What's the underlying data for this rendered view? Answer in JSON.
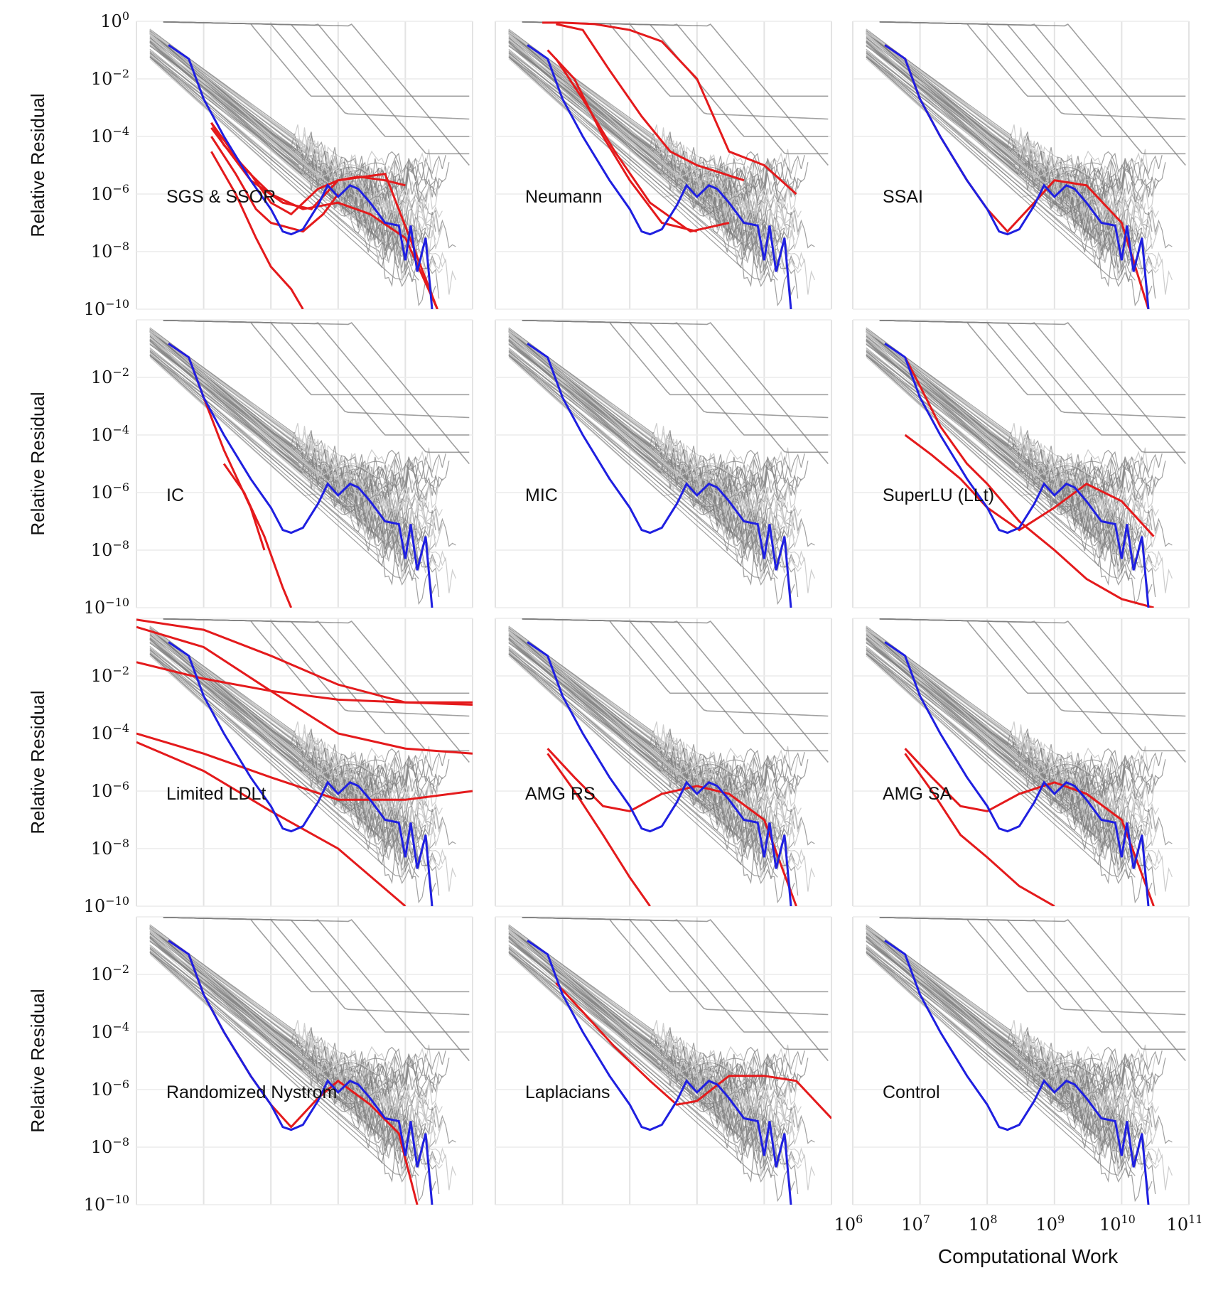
{
  "chart_data": {
    "type": "line",
    "xlabel": "Computational Work",
    "ylabel": "Relative Residual",
    "x_scale": "log",
    "y_scale": "log",
    "xlim": [
      1000000,
      100000000000
    ],
    "ylim": [
      1e-10,
      1
    ],
    "x_ticks": [
      1000000,
      10000000,
      100000000,
      1000000000,
      10000000000,
      100000000000
    ],
    "x_tick_labels": [
      {
        "base": "10",
        "exp": "6"
      },
      {
        "base": "10",
        "exp": "7"
      },
      {
        "base": "10",
        "exp": "8"
      },
      {
        "base": "10",
        "exp": "9"
      },
      {
        "base": "10",
        "exp": "10"
      },
      {
        "base": "10",
        "exp": "11"
      }
    ],
    "y_ticks": [
      1,
      0.01,
      0.0001,
      1e-06,
      1e-08,
      1e-10
    ],
    "y_tick_labels": [
      {
        "base": "10",
        "exp": "0"
      },
      {
        "base": "10",
        "exp": "−2"
      },
      {
        "base": "10",
        "exp": "−4"
      },
      {
        "base": "10",
        "exp": "−6"
      },
      {
        "base": "10",
        "exp": "−8"
      },
      {
        "base": "10",
        "exp": "−10"
      }
    ],
    "grid": true,
    "layout": {
      "rows": 4,
      "cols": 3
    },
    "colors": {
      "background_series": "#808080",
      "background_light": "#c8c8c8",
      "reference": "#1f1fe0",
      "highlight": "#e41a1c"
    },
    "reference_series": {
      "color": "#1f1fe0",
      "x": [
        3000000,
        6000000,
        10000000,
        20000000,
        50000000,
        100000000,
        150000000,
        200000000,
        300000000,
        500000000,
        700000000,
        1000000000,
        1500000000,
        2000000000,
        3000000000,
        5000000000,
        8000000000,
        10000000000,
        12000000000,
        15000000000,
        20000000000,
        25000000000
      ],
      "y": [
        0.15,
        0.05,
        0.002,
        0.0001,
        3e-06,
        3e-07,
        5e-08,
        4e-08,
        6e-08,
        4e-07,
        2e-06,
        8e-07,
        2e-06,
        1.5e-06,
        5e-07,
        1e-07,
        8e-08,
        5e-09,
        8e-08,
        2e-09,
        3e-08,
        1e-10
      ]
    },
    "panels": [
      {
        "label": "SGS & SSOR",
        "highlight": [
          {
            "x": [
              13000000,
              20000000,
              50000000,
              100000000,
              200000000,
              500000000,
              1000000000,
              2000000000,
              5000000000,
              10000000000
            ],
            "y": [
              0.0003,
              5e-05,
              5e-06,
              5e-07,
              2e-07,
              1.5e-06,
              3e-06,
              4e-06,
              3e-06,
              2e-06
            ]
          },
          {
            "x": [
              13000000,
              30000000,
              60000000,
              100000000,
              300000000,
              600000000,
              1000000000
            ],
            "y": [
              0.0001,
              5e-06,
              3e-07,
              1e-07,
              5e-08,
              2e-07,
              1e-06
            ]
          },
          {
            "x": [
              13000000,
              30000000,
              60000000,
              100000000,
              200000000,
              300000000
            ],
            "y": [
              3e-05,
              1e-06,
              3e-08,
              3e-09,
              5e-10,
              1e-10
            ]
          },
          {
            "x": [
              13000000,
              40000000,
              100000000,
              300000000,
              1000000000,
              3000000000,
              10000000000,
              30000000000
            ],
            "y": [
              0.0003,
              8e-06,
              1e-06,
              3e-07,
              5e-07,
              2e-07,
              3e-08,
              1e-10
            ]
          },
          {
            "x": [
              13000000,
              50000000,
              150000000,
              400000000,
              1000000000,
              5000000000,
              30000000000
            ],
            "y": [
              0.0002,
              3e-06,
              5e-07,
              3e-07,
              3e-06,
              5e-06,
              1e-10
            ]
          }
        ]
      },
      {
        "label": "Neumann",
        "highlight": [
          {
            "x": [
              5000000,
              10000000,
              30000000,
              100000000,
              300000000,
              1000000000,
              3000000000,
              10000000000,
              30000000000
            ],
            "y": [
              0.9,
              0.9,
              0.8,
              0.5,
              0.2,
              0.01,
              3e-05,
              1e-05,
              1e-06
            ]
          },
          {
            "x": [
              8000000,
              20000000,
              50000000,
              150000000,
              400000000,
              1000000000,
              5000000000
            ],
            "y": [
              0.8,
              0.5,
              0.02,
              0.0005,
              3e-05,
              1e-05,
              3e-06
            ]
          },
          {
            "x": [
              6000000,
              15000000,
              40000000,
              100000000,
              300000000,
              1000000000
            ],
            "y": [
              0.1,
              0.01,
              0.0001,
              3e-06,
              1e-07,
              5e-08
            ]
          },
          {
            "x": [
              8000000,
              20000000,
              60000000,
              200000000,
              800000000,
              3000000000
            ],
            "y": [
              0.05,
              0.002,
              3e-05,
              5e-07,
              5e-08,
              1e-07
            ]
          }
        ]
      },
      {
        "label": "SSAI",
        "highlight": [
          {
            "x": [
              3000000,
              6000000,
              10000000,
              20000000,
              50000000,
              100000000,
              200000000,
              500000000,
              1000000000,
              3000000000,
              10000000000,
              25000000000
            ],
            "y": [
              0.15,
              0.05,
              0.002,
              0.0001,
              3e-06,
              3e-07,
              5e-08,
              5e-07,
              3e-06,
              2e-06,
              1e-07,
              1e-10
            ]
          }
        ]
      },
      {
        "label": "IC",
        "highlight": [
          {
            "x": [
              3000000,
              6000000,
              10000000,
              20000000,
              50000000,
              80000000
            ],
            "y": [
              0.15,
              0.05,
              0.002,
              3e-05,
              3e-07,
              1e-08
            ]
          },
          {
            "x": [
              20000000,
              40000000,
              80000000,
              150000000,
              200000000
            ],
            "y": [
              1e-05,
              1e-06,
              3e-08,
              5e-10,
              1e-10
            ]
          }
        ]
      },
      {
        "label": "MIC",
        "highlight": []
      },
      {
        "label": "SuperLU (LLt)",
        "highlight": [
          {
            "x": [
              6000000,
              10000000,
              20000000,
              50000000,
              100000000,
              300000000,
              1000000000,
              3000000000,
              10000000000,
              30000000000
            ],
            "y": [
              0.05,
              0.005,
              0.0002,
              1e-05,
              2e-06,
              1e-07,
              1e-08,
              1e-09,
              2e-10,
              1e-10
            ]
          },
          {
            "x": [
              6000000,
              15000000,
              40000000,
              100000000,
              300000000,
              1000000000,
              3000000000,
              10000000000,
              30000000000
            ],
            "y": [
              0.0001,
              2e-05,
              3e-06,
              3e-07,
              5e-08,
              3e-07,
              2e-06,
              5e-07,
              3e-08
            ]
          }
        ]
      },
      {
        "label": "Limited LDLt",
        "highlight": [
          {
            "x": [
              1000000,
              10000000,
              100000000,
              1000000000,
              10000000000,
              100000000000
            ],
            "y": [
              0.03,
              0.008,
              0.003,
              0.0015,
              0.0012,
              0.0012
            ]
          },
          {
            "x": [
              1000000,
              10000000,
              100000000,
              1000000000,
              10000000000,
              100000000000
            ],
            "y": [
              0.9,
              0.4,
              0.05,
              0.005,
              0.0012,
              0.001
            ]
          },
          {
            "x": [
              1000000,
              10000000,
              100000000,
              1000000000,
              10000000000,
              100000000000
            ],
            "y": [
              0.5,
              0.1,
              0.003,
              0.0001,
              3e-05,
              2e-05
            ]
          },
          {
            "x": [
              1000000,
              10000000,
              100000000,
              1000000000,
              10000000000,
              100000000000
            ],
            "y": [
              0.0001,
              2e-05,
              3e-06,
              5e-07,
              5e-07,
              1e-06
            ]
          },
          {
            "x": [
              1000000,
              10000000,
              100000000,
              1000000000,
              10000000000
            ],
            "y": [
              5e-05,
              5e-06,
              2e-07,
              1e-08,
              1e-10
            ]
          }
        ]
      },
      {
        "label": "AMG RS",
        "highlight": [
          {
            "x": [
              6000000,
              15000000,
              40000000,
              100000000,
              300000000,
              1000000000,
              3000000000,
              10000000000,
              30000000000
            ],
            "y": [
              3e-05,
              3e-06,
              3e-07,
              2e-07,
              8e-07,
              1.5e-06,
              8e-07,
              1e-07,
              1e-10
            ]
          },
          {
            "x": [
              6000000,
              15000000,
              40000000,
              100000000,
              200000000
            ],
            "y": [
              2e-05,
              1e-06,
              3e-08,
              1e-09,
              1e-10
            ]
          }
        ]
      },
      {
        "label": "AMG SA",
        "highlight": [
          {
            "x": [
              6000000,
              15000000,
              40000000,
              100000000,
              300000000,
              1000000000,
              3000000000,
              10000000000,
              30000000000
            ],
            "y": [
              3e-05,
              3e-06,
              3e-07,
              2e-07,
              8e-07,
              2e-06,
              8e-07,
              1e-07,
              1e-10
            ]
          },
          {
            "x": [
              6000000,
              15000000,
              40000000,
              100000000,
              300000000,
              1000000000
            ],
            "y": [
              2e-05,
              1e-06,
              3e-08,
              5e-09,
              5e-10,
              1e-10
            ]
          }
        ]
      },
      {
        "label": "Randomized Nystrom",
        "highlight": [
          {
            "x": [
              3000000,
              6000000,
              10000000,
              20000000,
              50000000,
              100000000,
              200000000,
              500000000,
              1000000000,
              3000000000,
              8000000000,
              15000000000
            ],
            "y": [
              0.15,
              0.05,
              0.002,
              0.0001,
              3e-06,
              3e-07,
              5e-08,
              5e-07,
              2e-06,
              3e-07,
              3e-08,
              1e-10
            ]
          }
        ]
      },
      {
        "label": "Laplacians",
        "highlight": [
          {
            "x": [
              8000000,
              20000000,
              60000000,
              200000000,
              500000000,
              1000000000,
              3000000000,
              10000000000,
              30000000000,
              100000000000
            ],
            "y": [
              0.005,
              0.0005,
              3e-05,
              2e-06,
              3e-07,
              4e-07,
              3e-06,
              3e-06,
              2e-06,
              1e-07
            ]
          }
        ]
      },
      {
        "label": "Control",
        "highlight": []
      }
    ]
  }
}
